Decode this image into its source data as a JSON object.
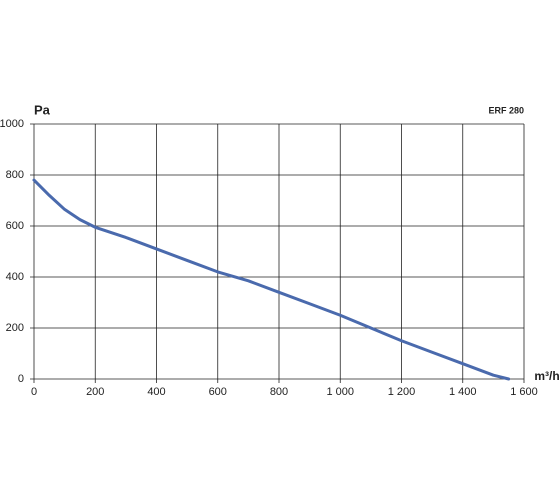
{
  "chart_data": {
    "type": "line",
    "title": "ERF 280",
    "y_label": "Pa",
    "x_label": "m³/h",
    "x": [
      0,
      50,
      100,
      150,
      200,
      300,
      400,
      500,
      600,
      700,
      800,
      900,
      1000,
      1100,
      1200,
      1300,
      1400,
      1500,
      1550
    ],
    "series": [
      {
        "color": "#4a6aad",
        "values": [
          780,
          720,
          665,
          625,
          595,
          555,
          510,
          465,
          420,
          385,
          340,
          295,
          250,
          200,
          150,
          105,
          60,
          15,
          0
        ]
      }
    ],
    "xlim": [
      0,
      1600
    ],
    "ylim": [
      0,
      1000
    ],
    "xticks": [
      0,
      200,
      400,
      600,
      800,
      {
        "value": 1000,
        "label": "1 000"
      },
      {
        "value": 1200,
        "label": "1 200"
      },
      {
        "value": 1400,
        "label": "1 400"
      },
      {
        "value": 1600,
        "label": "1 600"
      }
    ],
    "yticks": [
      0,
      200,
      400,
      600,
      800,
      1000
    ],
    "grid": true
  }
}
